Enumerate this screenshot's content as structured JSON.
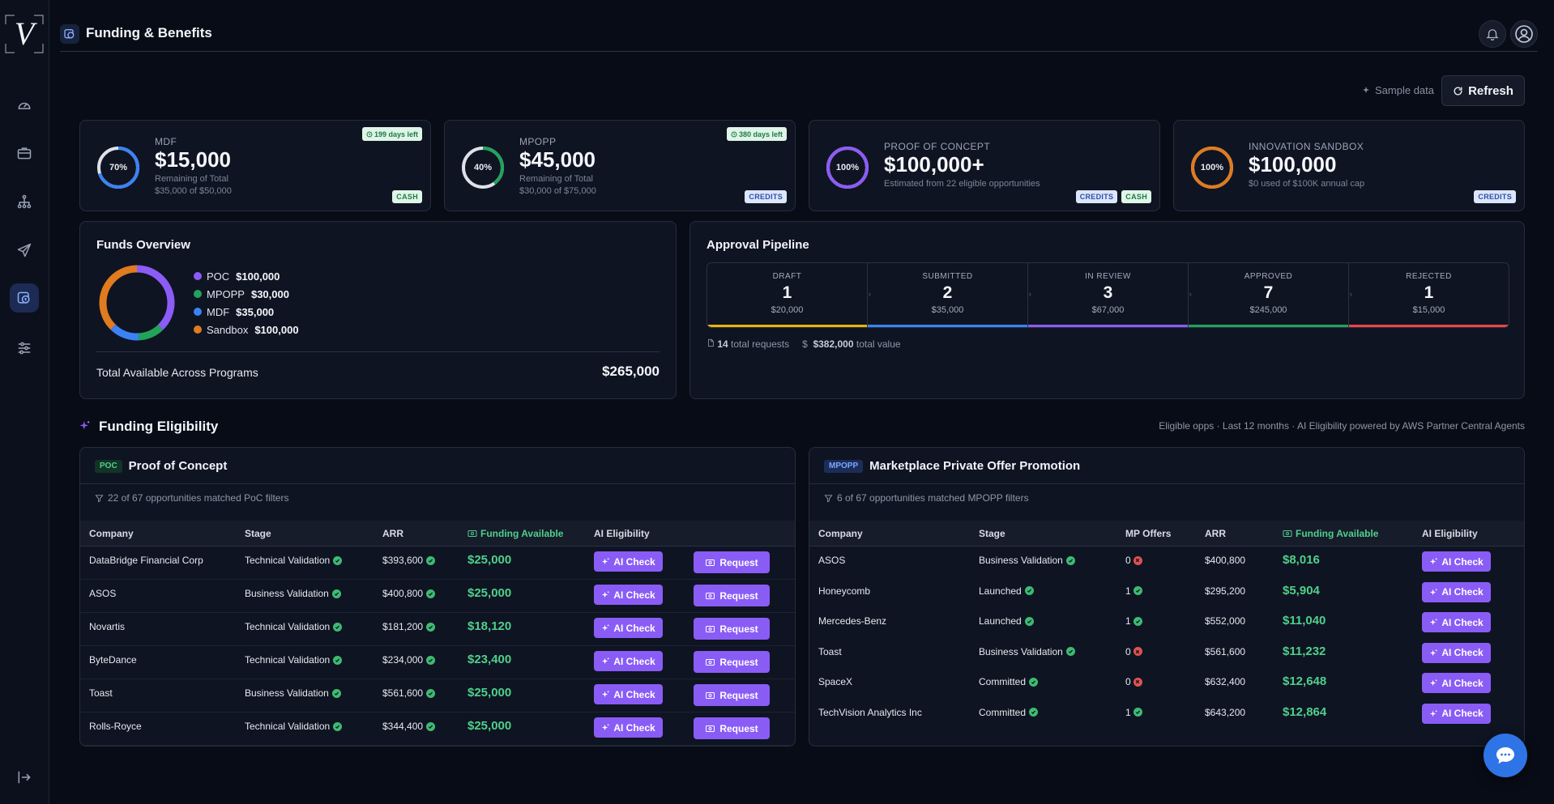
{
  "app": {
    "logo_letter": "V"
  },
  "header": {
    "title": "Funding & Benefits"
  },
  "toolbar": {
    "sample_data_label": "Sample data",
    "refresh_label": "Refresh"
  },
  "stat_cards": [
    {
      "label": "MDF",
      "percent_text": "70%",
      "percent": 70,
      "value": "$15,000",
      "sub1": "Remaining of Total",
      "sub2": "$35,000 of $50,000",
      "days_left": "199 days left",
      "tags": [
        "CASH"
      ],
      "color": "#3b82f6"
    },
    {
      "label": "MPOPP",
      "percent_text": "40%",
      "percent": 40,
      "value": "$45,000",
      "sub1": "Remaining of Total",
      "sub2": "$30,000 of $75,000",
      "days_left": "380 days left",
      "tags": [
        "CREDITS"
      ],
      "color": "#22a35a"
    },
    {
      "label": "PROOF OF CONCEPT",
      "percent_text": "100%",
      "percent": 100,
      "value": "$100,000+",
      "sub1": "Estimated from 22 eligible opportunities",
      "sub2": "",
      "days_left": "",
      "tags": [
        "CREDITS",
        "CASH"
      ],
      "color": "#8b5cf6"
    },
    {
      "label": "INNOVATION SANDBOX",
      "percent_text": "100%",
      "percent": 100,
      "value": "$100,000",
      "sub1": "$0 used of $100K annual cap",
      "sub2": "",
      "days_left": "",
      "tags": [
        "CREDITS"
      ],
      "color": "#e07b1f"
    }
  ],
  "funds_overview": {
    "title": "Funds Overview",
    "items": [
      {
        "name": "POC",
        "value": "$100,000",
        "amount": 100000,
        "color": "#8b5cf6"
      },
      {
        "name": "MPOPP",
        "value": "$30,000",
        "amount": 30000,
        "color": "#22a35a"
      },
      {
        "name": "MDF",
        "value": "$35,000",
        "amount": 35000,
        "color": "#3b82f6"
      },
      {
        "name": "Sandbox",
        "value": "$100,000",
        "amount": 100000,
        "color": "#e07b1f"
      }
    ],
    "total_label": "Total Available Across Programs",
    "total_value": "$265,000"
  },
  "pipeline": {
    "title": "Approval Pipeline",
    "stages": [
      {
        "label": "DRAFT",
        "count": "1",
        "amount": "$20,000",
        "color": "#eab308"
      },
      {
        "label": "SUBMITTED",
        "count": "2",
        "amount": "$35,000",
        "color": "#3b82f6"
      },
      {
        "label": "IN REVIEW",
        "count": "3",
        "amount": "$67,000",
        "color": "#8b5cf6"
      },
      {
        "label": "APPROVED",
        "count": "7",
        "amount": "$245,000",
        "color": "#22a35a"
      },
      {
        "label": "REJECTED",
        "count": "1",
        "amount": "$15,000",
        "color": "#ef4444"
      }
    ],
    "total_requests": "14",
    "total_requests_label": "total requests",
    "total_value": "$382,000",
    "total_value_label": "total value"
  },
  "eligibility": {
    "title": "Funding Eligibility",
    "note": "Eligible opps · Last 12 months · AI Eligibility powered by AWS Partner Central Agents"
  },
  "poc_table": {
    "badge": "POC",
    "title": "Proof of Concept",
    "filter_text": "22 of 67 opportunities matched PoC filters",
    "columns": [
      "Company",
      "Stage",
      "ARR",
      "Funding Available",
      "AI Eligibility"
    ],
    "ai_label": "AI Check",
    "request_label": "Request",
    "rows": [
      {
        "company": "DataBridge Financial Corp",
        "stage": "Technical Validation",
        "arr": "$393,600",
        "funding": "$25,000"
      },
      {
        "company": "ASOS",
        "stage": "Business Validation",
        "arr": "$400,800",
        "funding": "$25,000"
      },
      {
        "company": "Novartis",
        "stage": "Technical Validation",
        "arr": "$181,200",
        "funding": "$18,120"
      },
      {
        "company": "ByteDance",
        "stage": "Technical Validation",
        "arr": "$234,000",
        "funding": "$23,400"
      },
      {
        "company": "Toast",
        "stage": "Business Validation",
        "arr": "$561,600",
        "funding": "$25,000"
      },
      {
        "company": "Rolls-Royce",
        "stage": "Technical Validation",
        "arr": "$344,400",
        "funding": "$25,000"
      }
    ]
  },
  "mpopp_table": {
    "badge": "MPOPP",
    "title": "Marketplace Private Offer Promotion",
    "filter_text": "6 of 67 opportunities matched MPOPP filters",
    "columns": [
      "Company",
      "Stage",
      "MP Offers",
      "ARR",
      "Funding Available",
      "AI Eligibility"
    ],
    "ai_label": "AI Check",
    "rows": [
      {
        "company": "ASOS",
        "stage": "Business Validation",
        "offers": "0",
        "offer_ok": false,
        "arr": "$400,800",
        "funding": "$8,016"
      },
      {
        "company": "Honeycomb",
        "stage": "Launched",
        "offers": "1",
        "offer_ok": true,
        "arr": "$295,200",
        "funding": "$5,904"
      },
      {
        "company": "Mercedes-Benz",
        "stage": "Launched",
        "offers": "1",
        "offer_ok": true,
        "arr": "$552,000",
        "funding": "$11,040"
      },
      {
        "company": "Toast",
        "stage": "Business Validation",
        "offers": "0",
        "offer_ok": false,
        "arr": "$561,600",
        "funding": "$11,232"
      },
      {
        "company": "SpaceX",
        "stage": "Committed",
        "offers": "0",
        "offer_ok": false,
        "arr": "$632,400",
        "funding": "$12,648"
      },
      {
        "company": "TechVision Analytics Inc",
        "stage": "Committed",
        "offers": "1",
        "offer_ok": true,
        "arr": "$643,200",
        "funding": "$12,864"
      }
    ]
  }
}
